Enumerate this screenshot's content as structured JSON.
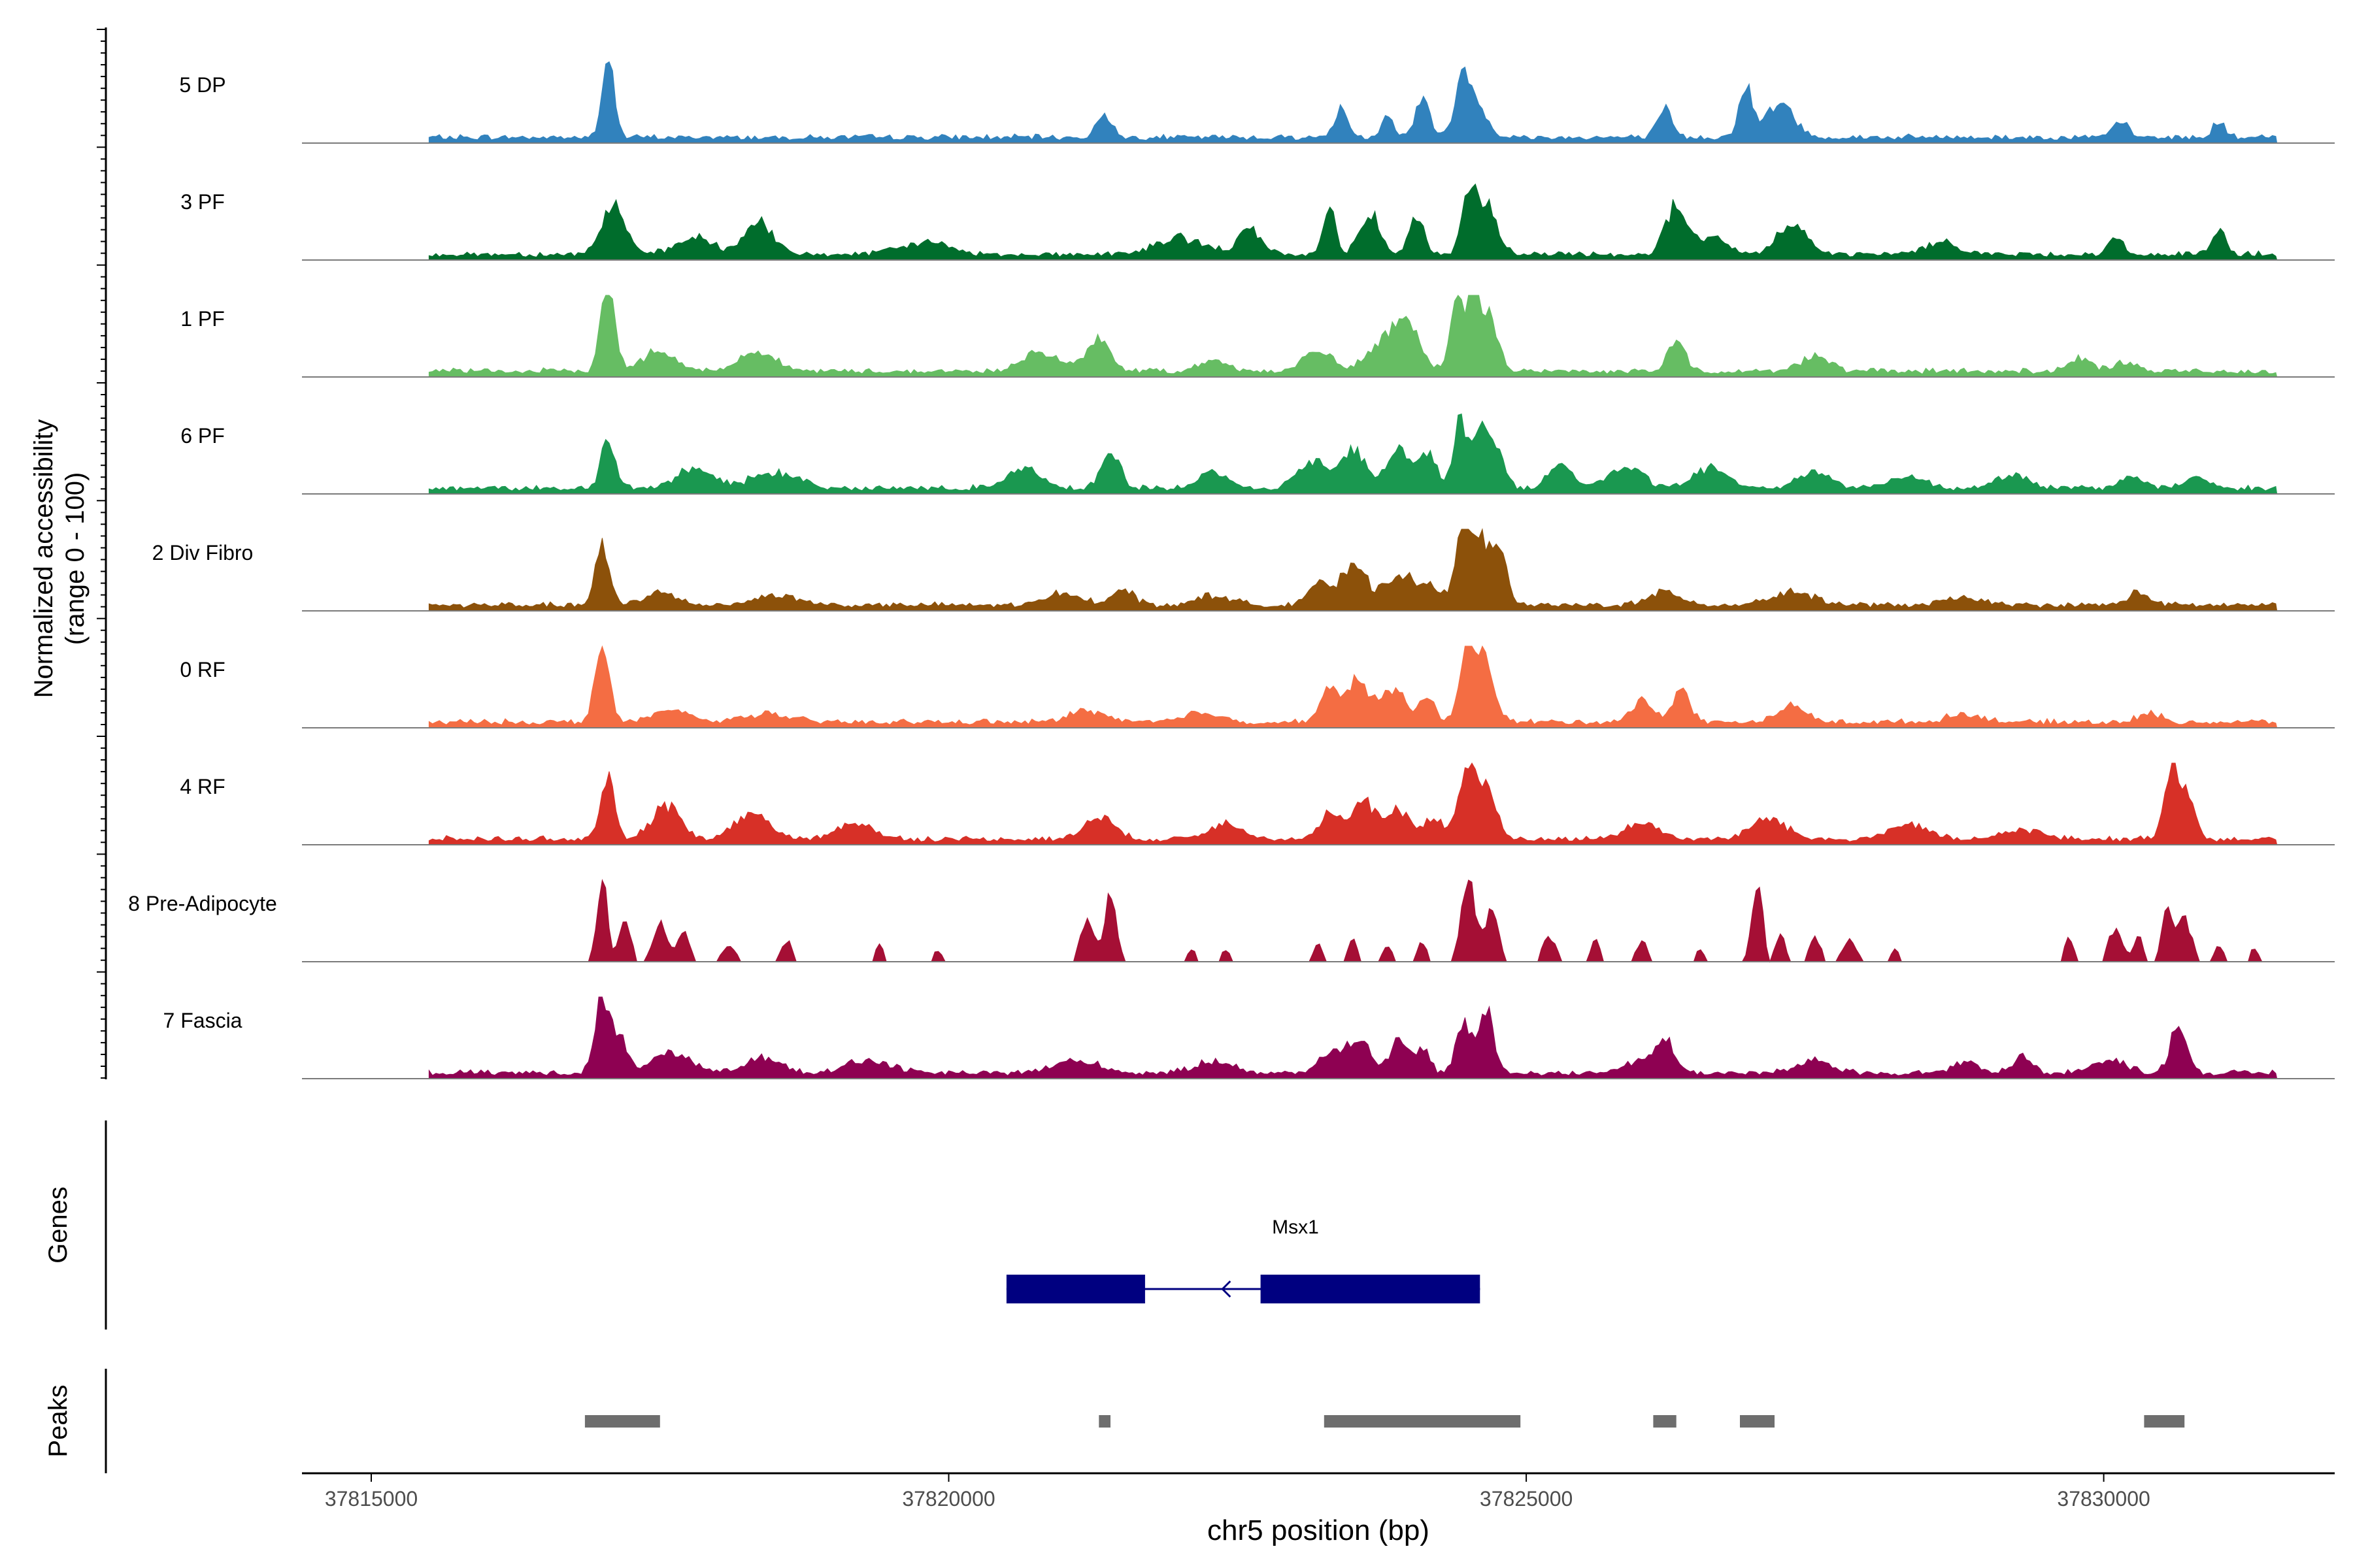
{
  "chart_data": {
    "type": "area",
    "title": "",
    "ylabel_line1": "Normalized accessibility",
    "ylabel_line2": "(range 0 - 100)",
    "xlabel": "chr5 position (bp)",
    "xlim": [
      37814400,
      37832000
    ],
    "ylim": [
      0,
      100
    ],
    "xticks": [
      {
        "value": 37815000,
        "label": "37815000"
      },
      {
        "value": 37820000,
        "label": "37820000"
      },
      {
        "value": 37825000,
        "label": "37825000"
      },
      {
        "value": 37830000,
        "label": "37830000"
      }
    ],
    "data_start": 37815500,
    "data_end": 37831500,
    "tracks": [
      {
        "name": "5 DP",
        "color": "#3182BD",
        "peaks": [
          [
            37817050,
            100,
            50
          ],
          [
            37821350,
            30,
            60
          ],
          [
            37823400,
            35,
            60
          ],
          [
            37823800,
            30,
            50
          ],
          [
            37824100,
            50,
            60
          ],
          [
            37824450,
            70,
            70
          ],
          [
            37824600,
            35,
            80
          ],
          [
            37826200,
            35,
            60
          ],
          [
            37826900,
            60,
            60
          ],
          [
            37827200,
            40,
            120
          ],
          [
            37830150,
            20,
            60
          ],
          [
            37831000,
            20,
            50
          ]
        ]
      },
      {
        "name": "3 PF",
        "color": "#006D2C",
        "peaks": [
          [
            37817100,
            60,
            100
          ],
          [
            37817800,
            20,
            150
          ],
          [
            37818350,
            40,
            120
          ],
          [
            37819800,
            15,
            200
          ],
          [
            37822000,
            20,
            200
          ],
          [
            37822600,
            30,
            100
          ],
          [
            37823300,
            60,
            50
          ],
          [
            37823650,
            50,
            90
          ],
          [
            37824050,
            50,
            60
          ],
          [
            37824500,
            70,
            60
          ],
          [
            37824650,
            60,
            90
          ],
          [
            37826300,
            60,
            90
          ],
          [
            37826600,
            20,
            120
          ],
          [
            37827300,
            40,
            120
          ],
          [
            37828600,
            15,
            150
          ],
          [
            37830100,
            20,
            60
          ],
          [
            37831000,
            30,
            60
          ]
        ]
      },
      {
        "name": "1 PF",
        "color": "#66BD63",
        "peaks": [
          [
            37817050,
            110,
            60
          ],
          [
            37817500,
            25,
            150
          ],
          [
            37818350,
            25,
            150
          ],
          [
            37820800,
            25,
            150
          ],
          [
            37821300,
            40,
            100
          ],
          [
            37822300,
            15,
            120
          ],
          [
            37823200,
            25,
            120
          ],
          [
            37823800,
            40,
            150
          ],
          [
            37824000,
            40,
            100
          ],
          [
            37824400,
            80,
            60
          ],
          [
            37824550,
            90,
            60
          ],
          [
            37824700,
            60,
            70
          ],
          [
            37826300,
            40,
            70
          ],
          [
            37827500,
            20,
            120
          ],
          [
            37829800,
            15,
            100
          ],
          [
            37830200,
            10,
            100
          ]
        ]
      },
      {
        "name": "6 PF",
        "color": "#1A9850",
        "peaks": [
          [
            37817050,
            60,
            60
          ],
          [
            37817800,
            25,
            150
          ],
          [
            37818500,
            20,
            200
          ],
          [
            37820650,
            25,
            150
          ],
          [
            37821400,
            45,
            80
          ],
          [
            37822300,
            20,
            120
          ],
          [
            37823150,
            35,
            120
          ],
          [
            37823500,
            50,
            100
          ],
          [
            37823900,
            50,
            100
          ],
          [
            37824150,
            45,
            70
          ],
          [
            37824430,
            80,
            60
          ],
          [
            37824620,
            70,
            70
          ],
          [
            37824760,
            40,
            60
          ],
          [
            37825300,
            30,
            100
          ],
          [
            37825850,
            25,
            150
          ],
          [
            37826600,
            25,
            150
          ],
          [
            37827500,
            20,
            150
          ],
          [
            37828300,
            15,
            150
          ],
          [
            37829200,
            15,
            150
          ],
          [
            37830250,
            15,
            100
          ],
          [
            37830800,
            15,
            100
          ]
        ]
      },
      {
        "name": "2 Div Fibro",
        "color": "#8C510A",
        "peaks": [
          [
            37817000,
            70,
            60
          ],
          [
            37817500,
            15,
            150
          ],
          [
            37818500,
            12,
            200
          ],
          [
            37821000,
            15,
            150
          ],
          [
            37821500,
            20,
            100
          ],
          [
            37822300,
            12,
            150
          ],
          [
            37823200,
            25,
            100
          ],
          [
            37823500,
            50,
            100
          ],
          [
            37823900,
            35,
            150
          ],
          [
            37824200,
            20,
            100
          ],
          [
            37824450,
            80,
            60
          ],
          [
            37824600,
            90,
            80
          ],
          [
            37824780,
            60,
            60
          ],
          [
            37826200,
            15,
            150
          ],
          [
            37827300,
            15,
            200
          ],
          [
            37828800,
            10,
            150
          ],
          [
            37830300,
            15,
            100
          ]
        ]
      },
      {
        "name": "0 RF",
        "color": "#F46D43",
        "peaks": [
          [
            37817000,
            100,
            60
          ],
          [
            37817600,
            15,
            150
          ],
          [
            37818400,
            10,
            200
          ],
          [
            37821200,
            15,
            150
          ],
          [
            37822200,
            12,
            150
          ],
          [
            37823300,
            40,
            80
          ],
          [
            37823550,
            50,
            100
          ],
          [
            37823850,
            40,
            100
          ],
          [
            37824150,
            35,
            60
          ],
          [
            37824500,
            90,
            70
          ],
          [
            37824650,
            70,
            80
          ],
          [
            37826000,
            25,
            100
          ],
          [
            37826350,
            40,
            70
          ],
          [
            37827300,
            20,
            120
          ],
          [
            37828800,
            10,
            150
          ],
          [
            37830400,
            10,
            100
          ]
        ]
      },
      {
        "name": "4 RF",
        "color": "#D73027",
        "peaks": [
          [
            37817050,
            70,
            60
          ],
          [
            37817550,
            40,
            120
          ],
          [
            37818300,
            30,
            150
          ],
          [
            37819200,
            20,
            150
          ],
          [
            37821300,
            30,
            120
          ],
          [
            37822400,
            20,
            150
          ],
          [
            37823300,
            35,
            80
          ],
          [
            37823600,
            45,
            100
          ],
          [
            37823900,
            35,
            100
          ],
          [
            37824200,
            25,
            80
          ],
          [
            37824480,
            80,
            70
          ],
          [
            37824650,
            70,
            80
          ],
          [
            37826000,
            20,
            150
          ],
          [
            37827100,
            25,
            150
          ],
          [
            37828300,
            20,
            150
          ],
          [
            37829300,
            12,
            150
          ],
          [
            37830600,
            90,
            70
          ],
          [
            37830750,
            40,
            60
          ]
        ]
      },
      {
        "name": "8 Pre-Adipocyte",
        "color": "#A50F35",
        "peaks": [
          [
            37817000,
            100,
            45
          ],
          [
            37817200,
            50,
            50
          ],
          [
            37817500,
            45,
            60
          ],
          [
            37817700,
            40,
            50
          ],
          [
            37818100,
            20,
            60
          ],
          [
            37818600,
            25,
            50
          ],
          [
            37819400,
            20,
            40
          ],
          [
            37819900,
            15,
            40
          ],
          [
            37821200,
            50,
            60
          ],
          [
            37821400,
            85,
            50
          ],
          [
            37822100,
            15,
            40
          ],
          [
            37822400,
            15,
            40
          ],
          [
            37823200,
            20,
            40
          ],
          [
            37823500,
            25,
            40
          ],
          [
            37823800,
            20,
            40
          ],
          [
            37824100,
            25,
            40
          ],
          [
            37824500,
            100,
            60
          ],
          [
            37824700,
            60,
            60
          ],
          [
            37825200,
            30,
            60
          ],
          [
            37825600,
            25,
            40
          ],
          [
            37826000,
            25,
            50
          ],
          [
            37826500,
            15,
            40
          ],
          [
            37827000,
            100,
            45
          ],
          [
            37827200,
            35,
            40
          ],
          [
            37827500,
            30,
            50
          ],
          [
            37827800,
            25,
            60
          ],
          [
            37828200,
            15,
            40
          ],
          [
            37829700,
            30,
            40
          ],
          [
            37830100,
            40,
            60
          ],
          [
            37830300,
            30,
            40
          ],
          [
            37830550,
            70,
            45
          ],
          [
            37830700,
            50,
            60
          ],
          [
            37831000,
            20,
            40
          ],
          [
            37831300,
            15,
            40
          ]
        ]
      },
      {
        "name": "7 Fascia",
        "color": "#8E0152",
        "peaks": [
          [
            37817000,
            90,
            60
          ],
          [
            37817150,
            40,
            80
          ],
          [
            37817600,
            25,
            150
          ],
          [
            37818400,
            20,
            150
          ],
          [
            37819300,
            15,
            200
          ],
          [
            37821100,
            15,
            200
          ],
          [
            37822300,
            15,
            150
          ],
          [
            37823300,
            25,
            100
          ],
          [
            37823550,
            40,
            100
          ],
          [
            37823900,
            40,
            80
          ],
          [
            37824100,
            30,
            60
          ],
          [
            37824450,
            60,
            60
          ],
          [
            37824650,
            80,
            70
          ],
          [
            37826200,
            35,
            80
          ],
          [
            37826000,
            15,
            150
          ],
          [
            37827500,
            15,
            150
          ],
          [
            37828800,
            15,
            100
          ],
          [
            37829300,
            20,
            80
          ],
          [
            37830050,
            15,
            150
          ],
          [
            37830650,
            60,
            70
          ]
        ]
      }
    ],
    "genes_label": "Genes",
    "genes": [
      {
        "name": "Msx1",
        "start": 37820500,
        "end": 37824600,
        "strand": "-",
        "exons": [
          [
            37820500,
            37821700
          ],
          [
            37822700,
            37824600
          ]
        ],
        "color": "#000080"
      }
    ],
    "peaks_label": "Peaks",
    "peak_regions": [
      [
        37816850,
        37817500
      ],
      [
        37821300,
        37821400
      ],
      [
        37823250,
        37824950
      ],
      [
        37826100,
        37826300
      ],
      [
        37826850,
        37827150
      ],
      [
        37830350,
        37830700
      ]
    ],
    "peak_color": "#6E6E6E"
  }
}
